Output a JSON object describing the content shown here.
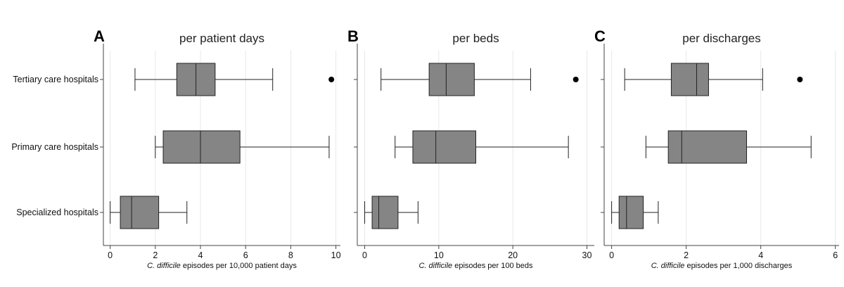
{
  "chart_data": [
    {
      "type": "boxplot",
      "panel_letter": "A",
      "title": "per patient days",
      "xlabel_italic": "C. difficile",
      "xlabel_rest": " episodes per 10,000 patient days",
      "xlim": [
        -0.3,
        10.2
      ],
      "ticks": [
        0,
        2,
        4,
        6,
        8,
        10
      ],
      "categories": [
        "Tertiary care hospitals",
        "Primary care hospitals",
        "Specialized hospitals"
      ],
      "boxes": [
        {
          "min": 1.1,
          "q1": 2.95,
          "median": 3.8,
          "q3": 4.65,
          "max": 7.2,
          "outliers": [
            9.8
          ]
        },
        {
          "min": 2.0,
          "q1": 2.35,
          "median": 4.0,
          "q3": 5.75,
          "max": 9.7,
          "outliers": []
        },
        {
          "min": 0.0,
          "q1": 0.45,
          "median": 0.95,
          "q3": 2.15,
          "max": 3.4,
          "outliers": []
        }
      ]
    },
    {
      "type": "boxplot",
      "panel_letter": "B",
      "title": "per beds",
      "xlabel_italic": "C. difficile",
      "xlabel_rest": " episodes per 100 beds",
      "xlim": [
        -1,
        31
      ],
      "ticks": [
        0,
        10,
        20,
        30
      ],
      "categories": [
        "Tertiary care hospitals",
        "Primary care hospitals",
        "Specialized hospitals"
      ],
      "boxes": [
        {
          "min": 2.2,
          "q1": 8.7,
          "median": 11.0,
          "q3": 14.8,
          "max": 22.4,
          "outliers": [
            28.5
          ]
        },
        {
          "min": 4.1,
          "q1": 6.5,
          "median": 9.6,
          "q3": 15.0,
          "max": 27.5,
          "outliers": []
        },
        {
          "min": 0.0,
          "q1": 1.0,
          "median": 1.9,
          "q3": 4.5,
          "max": 7.2,
          "outliers": []
        }
      ]
    },
    {
      "type": "boxplot",
      "panel_letter": "C",
      "title": "per discharges",
      "xlabel_italic": "C. difficile",
      "xlabel_rest": " episodes per 1,000 discharges",
      "xlim": [
        -0.2,
        6.1
      ],
      "ticks": [
        0,
        2,
        4,
        6
      ],
      "categories": [
        "Tertiary care hospitals",
        "Primary care hospitals",
        "Specialized hospitals"
      ],
      "boxes": [
        {
          "min": 0.35,
          "q1": 1.6,
          "median": 2.28,
          "q3": 2.6,
          "max": 4.05,
          "outliers": [
            5.05
          ]
        },
        {
          "min": 0.92,
          "q1": 1.52,
          "median": 1.88,
          "q3": 3.62,
          "max": 5.35,
          "outliers": []
        },
        {
          "min": 0.0,
          "q1": 0.2,
          "median": 0.4,
          "q3": 0.85,
          "max": 1.25,
          "outliers": []
        }
      ]
    }
  ]
}
